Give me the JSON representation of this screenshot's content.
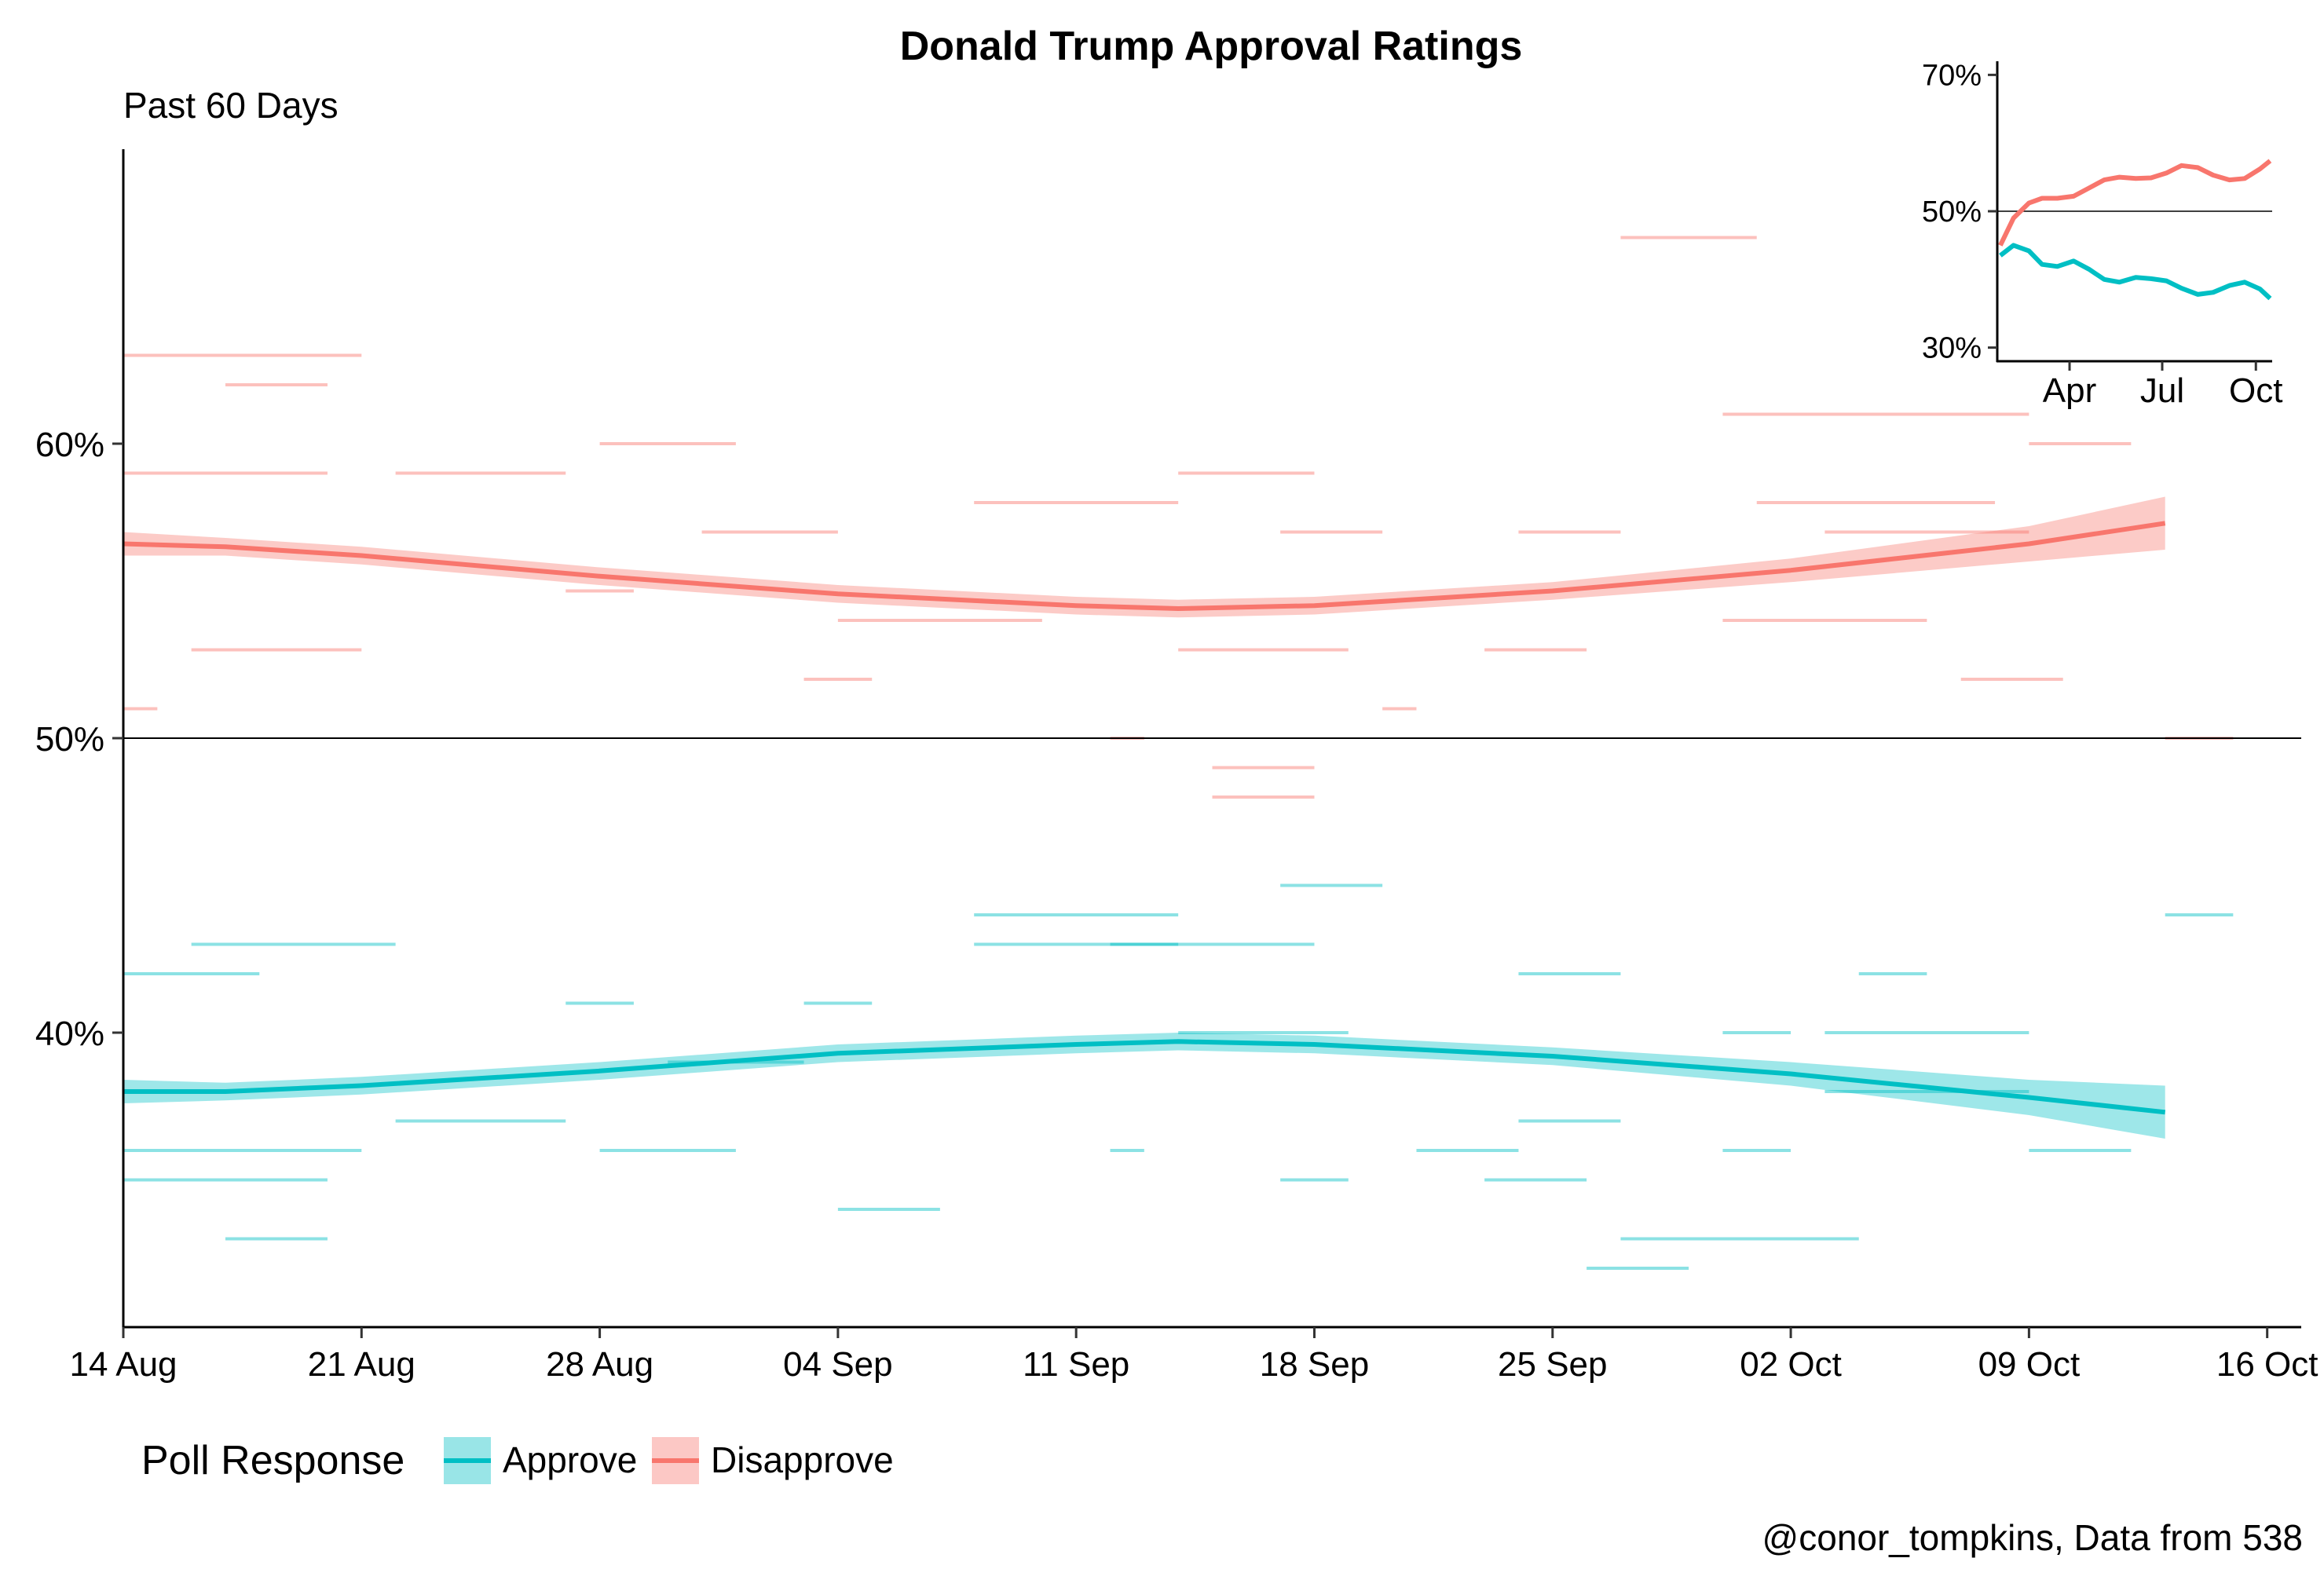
{
  "chart_data": [
    {
      "type": "line",
      "title": "Donald Trump Approval Ratings",
      "subtitle": "Past 60 Days",
      "xlabel": "",
      "ylabel": "",
      "x_ticks": [
        "14 Aug",
        "21 Aug",
        "28 Aug",
        "04 Sep",
        "11 Sep",
        "18 Sep",
        "25 Sep",
        "02 Oct",
        "09 Oct",
        "16 Oct"
      ],
      "x_range": [
        "2017-08-14",
        "2017-10-17"
      ],
      "ylim": [
        30,
        70
      ],
      "y_ticks": [
        "40%",
        "50%",
        "60%"
      ],
      "y_tick_values": [
        40,
        50,
        60
      ],
      "reference_line": 50,
      "grid": false,
      "legend": {
        "title": "Poll Response",
        "position": "bottom-left",
        "entries": [
          "Approve",
          "Disapprove"
        ]
      },
      "caption": "@conor_tompkins, Data from 538",
      "colors": {
        "Approve": "#00BFC4",
        "Disapprove": "#F8766D"
      },
      "series": [
        {
          "name": "Approve",
          "smooth": {
            "x": [
              "2017-08-14",
              "2017-08-17",
              "2017-08-21",
              "2017-08-28",
              "2017-09-04",
              "2017-09-11",
              "2017-09-14",
              "2017-09-18",
              "2017-09-25",
              "2017-10-02",
              "2017-10-09",
              "2017-10-13"
            ],
            "y": [
              38.0,
              38.0,
              38.2,
              38.7,
              39.3,
              39.6,
              39.7,
              39.6,
              39.2,
              38.6,
              37.8,
              37.3
            ],
            "lower": [
              37.6,
              37.7,
              37.9,
              38.4,
              39.0,
              39.3,
              39.4,
              39.3,
              38.9,
              38.2,
              37.2,
              36.4
            ],
            "upper": [
              38.4,
              38.3,
              38.5,
              39.0,
              39.6,
              39.9,
              40.0,
              39.9,
              39.5,
              39.0,
              38.4,
              38.2
            ]
          },
          "polls": [
            {
              "start": "2017-08-14",
              "end": "2017-08-21",
              "value": 36
            },
            {
              "start": "2017-08-14",
              "end": "2017-08-18",
              "value": 42
            },
            {
              "start": "2017-08-16",
              "end": "2017-08-22",
              "value": 43
            },
            {
              "start": "2017-08-14",
              "end": "2017-08-20",
              "value": 35
            },
            {
              "start": "2017-08-17",
              "end": "2017-08-20",
              "value": 33
            },
            {
              "start": "2017-08-22",
              "end": "2017-08-27",
              "value": 37
            },
            {
              "start": "2017-08-27",
              "end": "2017-08-29",
              "value": 41
            },
            {
              "start": "2017-08-28",
              "end": "2017-09-01",
              "value": 36
            },
            {
              "start": "2017-08-30",
              "end": "2017-09-03",
              "value": 39
            },
            {
              "start": "2017-09-03",
              "end": "2017-09-05",
              "value": 41
            },
            {
              "start": "2017-09-04",
              "end": "2017-09-07",
              "value": 34
            },
            {
              "start": "2017-09-08",
              "end": "2017-09-14",
              "value": 44
            },
            {
              "start": "2017-09-08",
              "end": "2017-09-14",
              "value": 43
            },
            {
              "start": "2017-09-12",
              "end": "2017-09-18",
              "value": 43
            },
            {
              "start": "2017-09-14",
              "end": "2017-09-19",
              "value": 40
            },
            {
              "start": "2017-09-17",
              "end": "2017-09-20",
              "value": 45
            },
            {
              "start": "2017-09-17",
              "end": "2017-09-19",
              "value": 35
            },
            {
              "start": "2017-09-12",
              "end": "2017-09-13",
              "value": 36
            },
            {
              "start": "2017-09-21",
              "end": "2017-09-24",
              "value": 36
            },
            {
              "start": "2017-09-24",
              "end": "2017-09-27",
              "value": 42
            },
            {
              "start": "2017-09-24",
              "end": "2017-09-27",
              "value": 37
            },
            {
              "start": "2017-09-23",
              "end": "2017-09-26",
              "value": 35
            },
            {
              "start": "2017-09-30",
              "end": "2017-10-02",
              "value": 36
            },
            {
              "start": "2017-09-30",
              "end": "2017-10-02",
              "value": 40
            },
            {
              "start": "2017-09-27",
              "end": "2017-10-04",
              "value": 33
            },
            {
              "start": "2017-09-26",
              "end": "2017-09-29",
              "value": 32
            },
            {
              "start": "2017-10-04",
              "end": "2017-10-06",
              "value": 42
            },
            {
              "start": "2017-10-03",
              "end": "2017-10-09",
              "value": 40
            },
            {
              "start": "2017-10-03",
              "end": "2017-10-09",
              "value": 38
            },
            {
              "start": "2017-10-09",
              "end": "2017-10-12",
              "value": 36
            },
            {
              "start": "2017-10-13",
              "end": "2017-10-15",
              "value": 44
            }
          ]
        },
        {
          "name": "Disapprove",
          "smooth": {
            "x": [
              "2017-08-14",
              "2017-08-17",
              "2017-08-21",
              "2017-08-28",
              "2017-09-04",
              "2017-09-11",
              "2017-09-14",
              "2017-09-18",
              "2017-09-25",
              "2017-10-02",
              "2017-10-09",
              "2017-10-13"
            ],
            "y": [
              56.6,
              56.5,
              56.2,
              55.5,
              54.9,
              54.5,
              54.4,
              54.5,
              55.0,
              55.7,
              56.6,
              57.3
            ],
            "lower": [
              56.2,
              56.2,
              55.9,
              55.2,
              54.6,
              54.2,
              54.1,
              54.2,
              54.7,
              55.3,
              56.0,
              56.4
            ],
            "upper": [
              57.0,
              56.8,
              56.5,
              55.8,
              55.2,
              54.8,
              54.7,
              54.8,
              55.3,
              56.1,
              57.2,
              58.2
            ]
          },
          "polls": [
            {
              "start": "2017-08-14",
              "end": "2017-08-21",
              "value": 63
            },
            {
              "start": "2017-08-14",
              "end": "2017-08-20",
              "value": 59
            },
            {
              "start": "2017-08-17",
              "end": "2017-08-20",
              "value": 62
            },
            {
              "start": "2017-08-14",
              "end": "2017-08-15",
              "value": 51
            },
            {
              "start": "2017-08-16",
              "end": "2017-08-21",
              "value": 53
            },
            {
              "start": "2017-08-22",
              "end": "2017-08-27",
              "value": 59
            },
            {
              "start": "2017-08-27",
              "end": "2017-08-29",
              "value": 55
            },
            {
              "start": "2017-08-28",
              "end": "2017-09-01",
              "value": 60
            },
            {
              "start": "2017-08-31",
              "end": "2017-09-04",
              "value": 57
            },
            {
              "start": "2017-09-03",
              "end": "2017-09-05",
              "value": 52
            },
            {
              "start": "2017-09-04",
              "end": "2017-09-10",
              "value": 54
            },
            {
              "start": "2017-09-08",
              "end": "2017-09-14",
              "value": 58
            },
            {
              "start": "2017-09-12",
              "end": "2017-09-13",
              "value": 50
            },
            {
              "start": "2017-09-14",
              "end": "2017-09-19",
              "value": 53
            },
            {
              "start": "2017-09-14",
              "end": "2017-09-18",
              "value": 59
            },
            {
              "start": "2017-09-17",
              "end": "2017-09-20",
              "value": 57
            },
            {
              "start": "2017-09-15",
              "end": "2017-09-18",
              "value": 49
            },
            {
              "start": "2017-09-15",
              "end": "2017-09-18",
              "value": 48
            },
            {
              "start": "2017-09-20",
              "end": "2017-09-21",
              "value": 51
            },
            {
              "start": "2017-09-24",
              "end": "2017-09-27",
              "value": 57
            },
            {
              "start": "2017-09-23",
              "end": "2017-09-26",
              "value": 53
            },
            {
              "start": "2017-09-27",
              "end": "2017-10-01",
              "value": 67
            },
            {
              "start": "2017-09-30",
              "end": "2017-10-09",
              "value": 61
            },
            {
              "start": "2017-09-30",
              "end": "2017-10-06",
              "value": 54
            },
            {
              "start": "2017-10-01",
              "end": "2017-10-08",
              "value": 58
            },
            {
              "start": "2017-10-03",
              "end": "2017-10-09",
              "value": 57
            },
            {
              "start": "2017-10-07",
              "end": "2017-10-10",
              "value": 52
            },
            {
              "start": "2017-10-09",
              "end": "2017-10-12",
              "value": 60
            },
            {
              "start": "2017-10-13",
              "end": "2017-10-15",
              "value": 50
            }
          ]
        }
      ]
    },
    {
      "type": "line",
      "title": "",
      "xlabel": "",
      "ylabel": "",
      "x_ticks": [
        "Apr",
        "Jul",
        "Oct"
      ],
      "x_range": [
        "2017-01-20",
        "2017-10-17"
      ],
      "ylim": [
        28,
        72
      ],
      "y_ticks": [
        "30%",
        "50%",
        "70%"
      ],
      "y_tick_values": [
        30,
        50,
        70
      ],
      "reference_line": 50,
      "grid": false,
      "legend": null,
      "position": "top-right inset",
      "series": [
        {
          "name": "Approve",
          "x": [
            "2017-01-23",
            "2017-02-05",
            "2017-02-20",
            "2017-03-05",
            "2017-03-20",
            "2017-04-05",
            "2017-04-20",
            "2017-05-05",
            "2017-05-20",
            "2017-06-05",
            "2017-06-20",
            "2017-07-05",
            "2017-07-20",
            "2017-08-05",
            "2017-08-20",
            "2017-09-05",
            "2017-09-20",
            "2017-10-05",
            "2017-10-15"
          ],
          "y": [
            43.5,
            45.0,
            44.2,
            42.2,
            41.9,
            42.7,
            41.5,
            40.0,
            39.6,
            40.3,
            40.1,
            39.8,
            38.7,
            37.8,
            38.1,
            39.1,
            39.6,
            38.6,
            37.2
          ]
        },
        {
          "name": "Disapprove",
          "x": [
            "2017-01-23",
            "2017-02-05",
            "2017-02-20",
            "2017-03-05",
            "2017-03-20",
            "2017-04-05",
            "2017-04-20",
            "2017-05-05",
            "2017-05-20",
            "2017-06-05",
            "2017-06-20",
            "2017-07-05",
            "2017-07-20",
            "2017-08-05",
            "2017-08-20",
            "2017-09-05",
            "2017-09-20",
            "2017-10-05",
            "2017-10-15"
          ],
          "y": [
            45.0,
            49.0,
            51.2,
            51.9,
            51.9,
            52.2,
            53.4,
            54.6,
            55.0,
            54.8,
            54.9,
            55.6,
            56.7,
            56.4,
            55.3,
            54.6,
            54.8,
            56.2,
            57.4
          ]
        }
      ]
    }
  ]
}
